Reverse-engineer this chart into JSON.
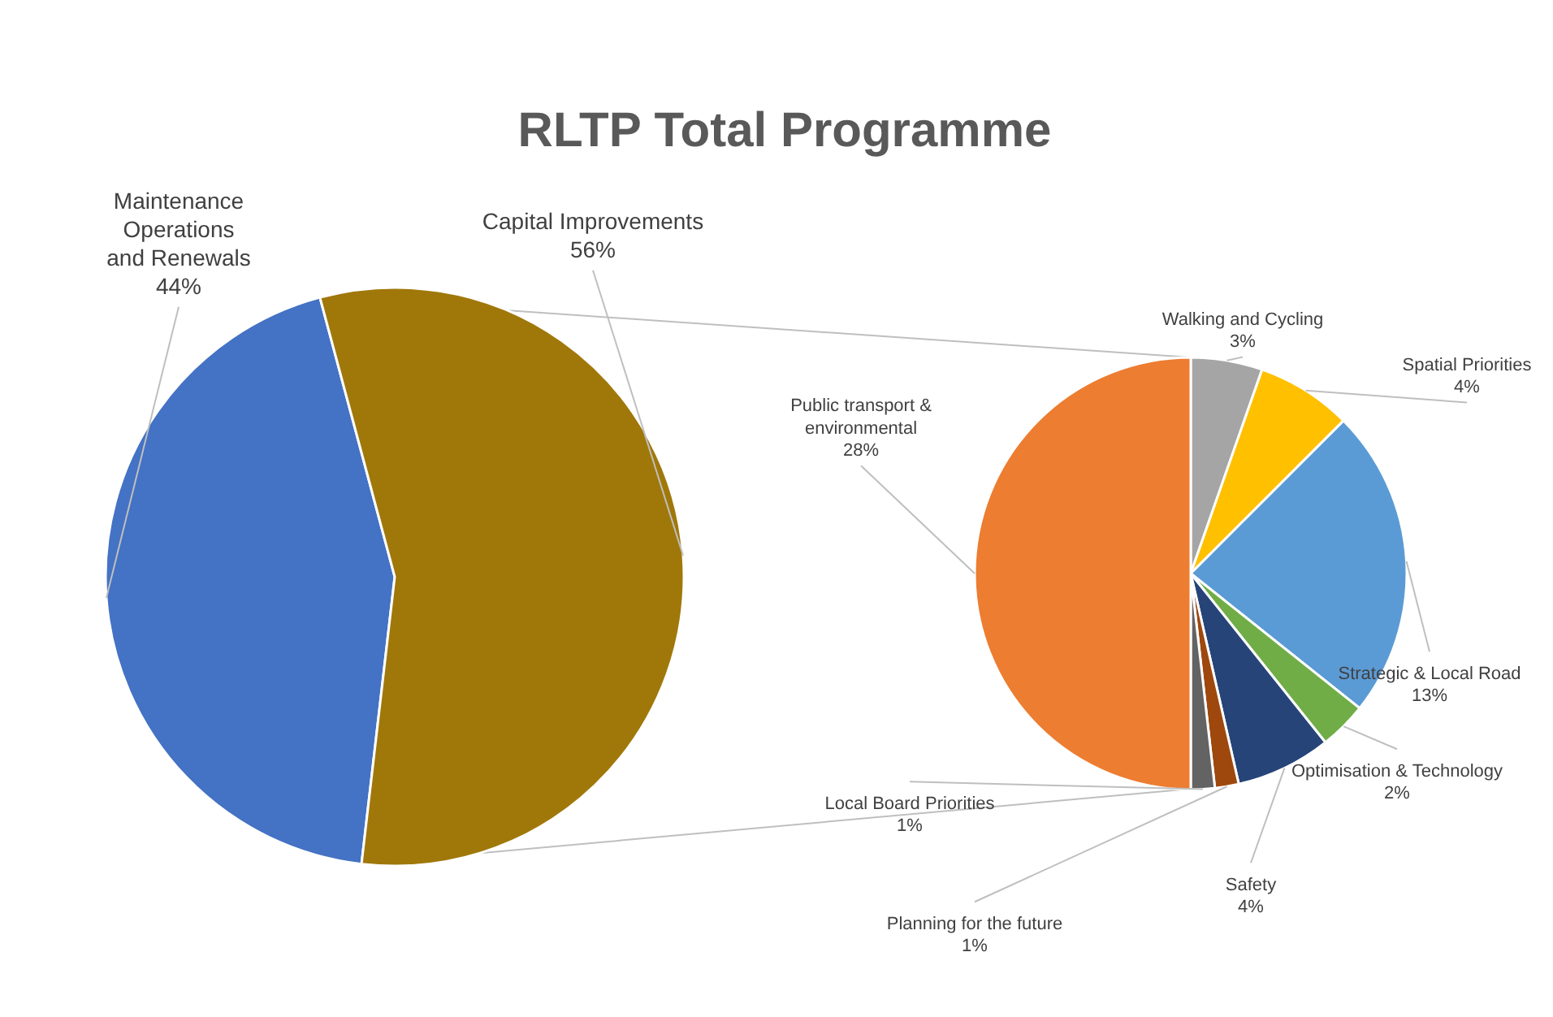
{
  "chart_data": [
    {
      "type": "pie",
      "title": "RLTP Total Programme",
      "categories": [
        "Maintenance Operations and Renewals",
        "Capital Improvements"
      ],
      "values": [
        44,
        56
      ],
      "colors": [
        "#4472c4",
        "#a0780a"
      ],
      "value_labels": [
        "44%",
        "56%"
      ]
    },
    {
      "type": "pie",
      "categories": [
        "Walking and Cycling",
        "Spatial Priorities",
        "Strategic & Local Road",
        "Optimisation & Technology",
        "Safety",
        "Planning for the future",
        "Local Board Priorities",
        "Public transport & environmental"
      ],
      "values": [
        3,
        4,
        13,
        2,
        4,
        1,
        1,
        28
      ],
      "colors": [
        "#a5a5a5",
        "#ffc000",
        "#5b9bd5",
        "#70ad47",
        "#264478",
        "#9e480e",
        "#636363",
        "#ed7d31"
      ],
      "value_labels": [
        "3%",
        "4%",
        "13%",
        "2%",
        "4%",
        "1%",
        "1%",
        "28%"
      ]
    }
  ]
}
